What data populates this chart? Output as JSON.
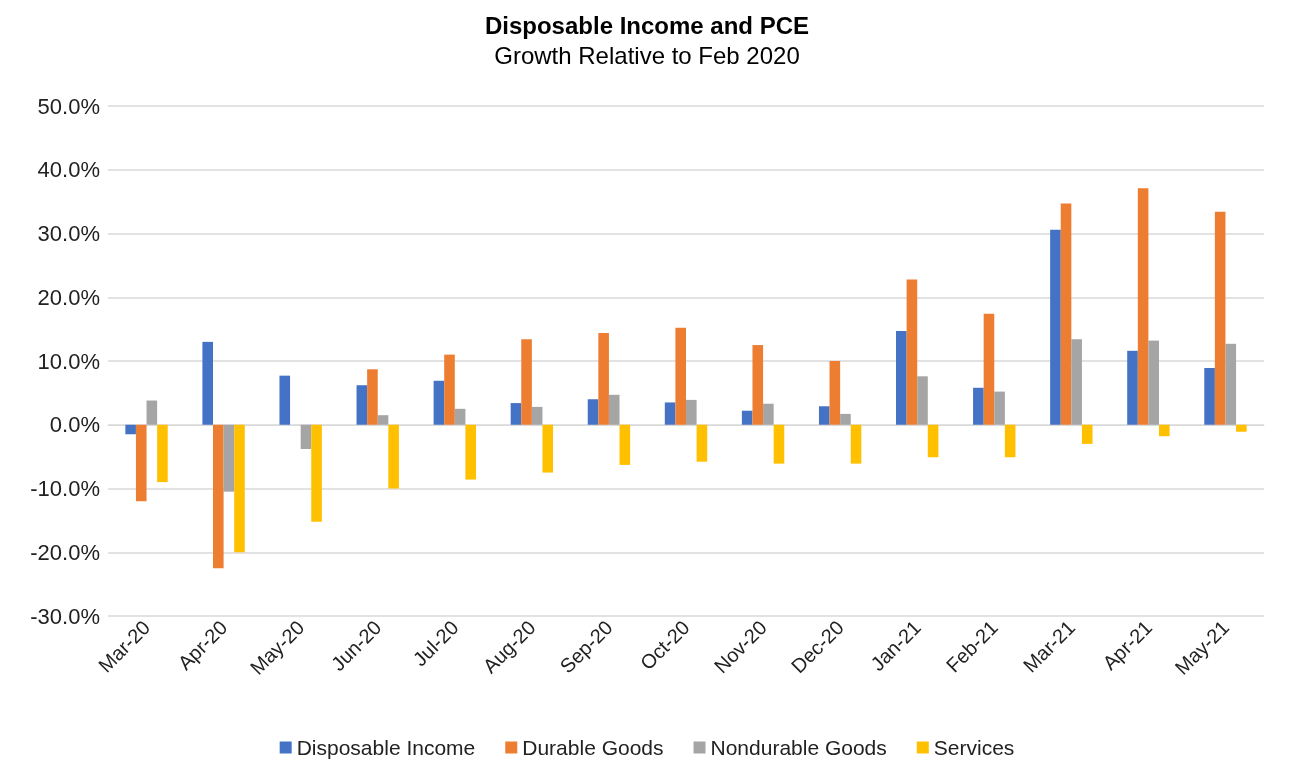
{
  "chart_data": {
    "type": "bar",
    "title": "Disposable Income and PCE",
    "subtitle": "Growth Relative to Feb 2020",
    "categories": [
      "Mar-20",
      "Apr-20",
      "May-20",
      "Jun-20",
      "Jul-20",
      "Aug-20",
      "Sep-20",
      "Oct-20",
      "Nov-20",
      "Dec-20",
      "Jan-21",
      "Feb-21",
      "Mar-21",
      "Apr-21",
      "May-21"
    ],
    "series": [
      {
        "name": "Disposable Income",
        "color": "#4472c4",
        "values": [
          -1.5,
          13,
          7.7,
          6.2,
          6.9,
          3.4,
          4.0,
          3.5,
          2.2,
          2.9,
          14.7,
          5.8,
          30.6,
          11.6,
          8.9
        ]
      },
      {
        "name": "Durable Goods",
        "color": "#ed7d31",
        "values": [
          -12,
          -22.5,
          0,
          8.7,
          11,
          13.4,
          14.4,
          15.2,
          12.5,
          10,
          22.8,
          17.4,
          34.7,
          37.1,
          33.4
        ]
      },
      {
        "name": "Nondurable Goods",
        "color": "#a5a5a5",
        "values": [
          3.8,
          -10.5,
          -3.8,
          1.5,
          2.5,
          2.8,
          4.7,
          3.9,
          3.3,
          1.7,
          7.6,
          5.2,
          13.4,
          13.2,
          12.7
        ]
      },
      {
        "name": "Services",
        "color": "#ffc000",
        "values": [
          -9,
          -20,
          -15.2,
          -10,
          -8.6,
          -7.5,
          -6.3,
          -5.8,
          -6.1,
          -6.1,
          -5.1,
          -5.1,
          -3,
          -1.8,
          -1.1
        ]
      }
    ],
    "ylim": [
      -30,
      50
    ],
    "yticks": [
      {
        "value": -30,
        "label": "-30.0%"
      },
      {
        "value": -20,
        "label": "-20.0%"
      },
      {
        "value": -10,
        "label": "-10.0%"
      },
      {
        "value": 0,
        "label": "0.0%"
      },
      {
        "value": 10,
        "label": "10.0%"
      },
      {
        "value": 20,
        "label": "20.0%"
      },
      {
        "value": 30,
        "label": "30.0%"
      },
      {
        "value": 40,
        "label": "40.0%"
      },
      {
        "value": 50,
        "label": "50.0%"
      }
    ],
    "grid": "y",
    "legend": "bottom"
  }
}
